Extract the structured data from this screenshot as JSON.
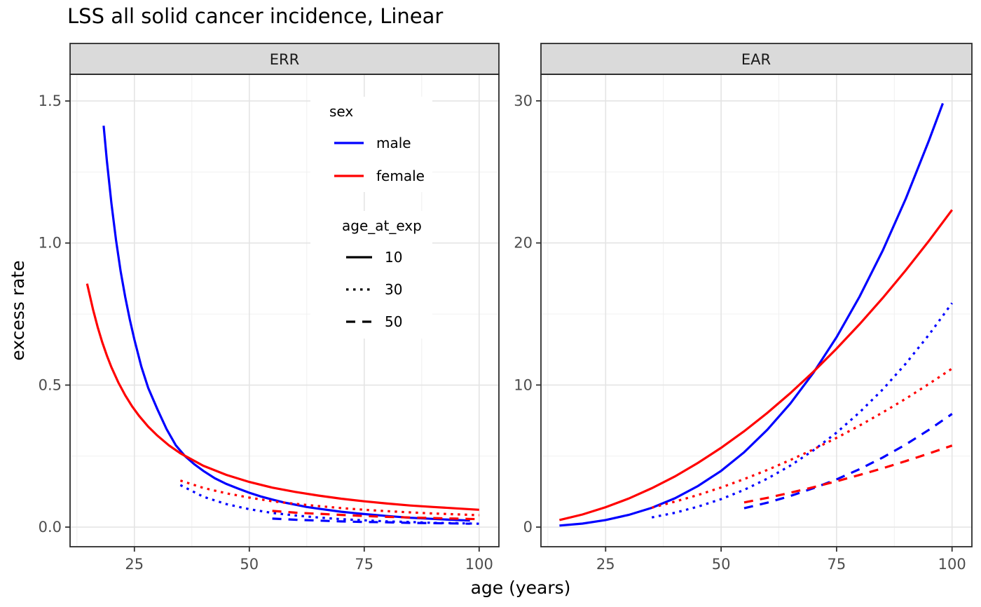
{
  "legend": {
    "sex": {
      "title": "sex",
      "items": [
        {
          "label": "male",
          "color": "#0000FF"
        },
        {
          "label": "female",
          "color": "#FF0000"
        }
      ]
    },
    "age_at_exp": {
      "title": "age_at_exp",
      "items": [
        {
          "label": "10",
          "linetype": "solid",
          "dash": "none"
        },
        {
          "label": "30",
          "linetype": "dotted",
          "dash": "3.5 6.5"
        },
        {
          "label": "50",
          "linetype": "dashed",
          "dash": "13 10"
        }
      ]
    }
  },
  "chart_data": {
    "type": "line",
    "title": "LSS all solid cancer incidence, Linear",
    "xlabel": "age (years)",
    "ylabel": "excess rate",
    "grid": true,
    "legend_position": "inside ERR panel, upper middle",
    "linetypes": {
      "solid": "none",
      "dotted": "3.5 6.5",
      "dashed": "13 10"
    },
    "colors": {
      "male": "#0000FF",
      "female": "#FF0000"
    },
    "facets": [
      {
        "label": "ERR",
        "x_range": [
          11,
          104.3
        ],
        "y_range": [
          -0.069,
          1.594
        ],
        "x_major_ticks": [
          25,
          50,
          75,
          100
        ],
        "x_tick_labels": [
          "25",
          "50",
          "75",
          "100"
        ],
        "x_minor_ticks": [
          12.5,
          37.5,
          62.5,
          87.5
        ],
        "y_major_ticks": [
          0,
          0.5,
          1.0,
          1.5
        ],
        "y_tick_labels": [
          "0.0",
          "0.5",
          "1.0",
          "1.5"
        ],
        "y_minor_ticks": [
          0.25,
          0.75,
          1.25
        ],
        "series": [
          {
            "sex": "male",
            "age_at_exp": 10,
            "color": "#0000FF",
            "linetype": "solid",
            "points": [
              [
                18.3,
                1.413
              ],
              [
                19,
                1.29
              ],
              [
                20,
                1.14
              ],
              [
                21,
                1.01
              ],
              [
                22,
                0.9
              ],
              [
                23,
                0.81
              ],
              [
                24,
                0.73
              ],
              [
                25,
                0.66
              ],
              [
                26.5,
                0.565
              ],
              [
                28,
                0.49
              ],
              [
                30,
                0.415
              ],
              [
                32,
                0.345
              ],
              [
                34,
                0.288
              ],
              [
                36,
                0.25
              ],
              [
                38,
                0.222
              ],
              [
                40,
                0.198
              ],
              [
                42.5,
                0.172
              ],
              [
                45,
                0.152
              ],
              [
                47.5,
                0.136
              ],
              [
                50,
                0.121
              ],
              [
                52.5,
                0.108
              ],
              [
                55,
                0.097
              ],
              [
                57.5,
                0.087
              ],
              [
                60,
                0.079
              ],
              [
                62.5,
                0.071
              ],
              [
                65,
                0.065
              ],
              [
                70,
                0.054
              ],
              [
                75,
                0.046
              ],
              [
                80,
                0.039
              ],
              [
                85,
                0.033
              ],
              [
                90,
                0.029
              ],
              [
                95,
                0.025
              ],
              [
                98,
                0.023
              ]
            ]
          },
          {
            "sex": "female",
            "age_at_exp": 10,
            "color": "#FF0000",
            "linetype": "solid",
            "points": [
              [
                14.7,
                0.857
              ],
              [
                16,
                0.766
              ],
              [
                17,
                0.704
              ],
              [
                18,
                0.651
              ],
              [
                19,
                0.604
              ],
              [
                20,
                0.563
              ],
              [
                21.5,
                0.509
              ],
              [
                23,
                0.464
              ],
              [
                24.5,
                0.425
              ],
              [
                26,
                0.392
              ],
              [
                28,
                0.354
              ],
              [
                30,
                0.322
              ],
              [
                32.5,
                0.288
              ],
              [
                35,
                0.26
              ],
              [
                40,
                0.216
              ],
              [
                45,
                0.184
              ],
              [
                50,
                0.159
              ],
              [
                55,
                0.139
              ],
              [
                60,
                0.124
              ],
              [
                65,
                0.111
              ],
              [
                70,
                0.1
              ],
              [
                75,
                0.091
              ],
              [
                80,
                0.083
              ],
              [
                85,
                0.076
              ],
              [
                90,
                0.071
              ],
              [
                95,
                0.066
              ],
              [
                100,
                0.061
              ]
            ]
          },
          {
            "sex": "male",
            "age_at_exp": 30,
            "color": "#0000FF",
            "linetype": "dotted",
            "points": [
              [
                35,
                0.148
              ],
              [
                40,
                0.107
              ],
              [
                45,
                0.081
              ],
              [
                50,
                0.063
              ],
              [
                55,
                0.05
              ],
              [
                60,
                0.041
              ],
              [
                65,
                0.034
              ],
              [
                70,
                0.028
              ],
              [
                75,
                0.024
              ],
              [
                80,
                0.02
              ],
              [
                85,
                0.018
              ],
              [
                90,
                0.015
              ],
              [
                95,
                0.014
              ],
              [
                100,
                0.012
              ]
            ]
          },
          {
            "sex": "female",
            "age_at_exp": 30,
            "color": "#FF0000",
            "linetype": "dotted",
            "points": [
              [
                35,
                0.164
              ],
              [
                40,
                0.138
              ],
              [
                45,
                0.119
              ],
              [
                50,
                0.104
              ],
              [
                55,
                0.091
              ],
              [
                60,
                0.082
              ],
              [
                65,
                0.074
              ],
              [
                70,
                0.067
              ],
              [
                75,
                0.061
              ],
              [
                80,
                0.056
              ],
              [
                85,
                0.052
              ],
              [
                90,
                0.048
              ],
              [
                95,
                0.045
              ],
              [
                100,
                0.042
              ]
            ]
          },
          {
            "sex": "male",
            "age_at_exp": 50,
            "color": "#0000FF",
            "linetype": "dashed",
            "points": [
              [
                55,
                0.03
              ],
              [
                60,
                0.026
              ],
              [
                65,
                0.023
              ],
              [
                70,
                0.02
              ],
              [
                75,
                0.018
              ],
              [
                80,
                0.017
              ],
              [
                85,
                0.015
              ],
              [
                90,
                0.014
              ],
              [
                95,
                0.013
              ],
              [
                98,
                0.012
              ]
            ]
          },
          {
            "sex": "female",
            "age_at_exp": 50,
            "color": "#FF0000",
            "linetype": "dashed",
            "points": [
              [
                55,
                0.057
              ],
              [
                60,
                0.051
              ],
              [
                65,
                0.047
              ],
              [
                70,
                0.043
              ],
              [
                75,
                0.039
              ],
              [
                80,
                0.036
              ],
              [
                85,
                0.034
              ],
              [
                90,
                0.032
              ],
              [
                95,
                0.03
              ],
              [
                100,
                0.028
              ]
            ]
          }
        ]
      },
      {
        "label": "EAR",
        "x_range": [
          11,
          104.3
        ],
        "y_range": [
          -1.38,
          31.87
        ],
        "x_major_ticks": [
          25,
          50,
          75,
          100
        ],
        "x_tick_labels": [
          "25",
          "50",
          "75",
          "100"
        ],
        "x_minor_ticks": [
          12.5,
          37.5,
          62.5,
          87.5
        ],
        "y_major_ticks": [
          0,
          10,
          20,
          30
        ],
        "y_tick_labels": [
          "0",
          "10",
          "20",
          "30"
        ],
        "y_minor_ticks": [
          5,
          15,
          25
        ],
        "series": [
          {
            "sex": "male",
            "age_at_exp": 10,
            "color": "#0000FF",
            "linetype": "solid",
            "points": [
              [
                15,
                0.11
              ],
              [
                20,
                0.25
              ],
              [
                25,
                0.5
              ],
              [
                30,
                0.86
              ],
              [
                35,
                1.36
              ],
              [
                40,
                2.03
              ],
              [
                45,
                2.89
              ],
              [
                50,
                3.96
              ],
              [
                55,
                5.27
              ],
              [
                60,
                6.85
              ],
              [
                65,
                8.7
              ],
              [
                70,
                10.87
              ],
              [
                75,
                13.37
              ],
              [
                80,
                16.23
              ],
              [
                85,
                19.47
              ],
              [
                90,
                23.12
              ],
              [
                95,
                27.21
              ],
              [
                98,
                29.83
              ]
            ]
          },
          {
            "sex": "female",
            "age_at_exp": 10,
            "color": "#FF0000",
            "linetype": "solid",
            "points": [
              [
                15,
                0.5
              ],
              [
                20,
                0.89
              ],
              [
                25,
                1.4
              ],
              [
                30,
                2.01
              ],
              [
                35,
                2.74
              ],
              [
                40,
                3.57
              ],
              [
                45,
                4.52
              ],
              [
                50,
                5.58
              ],
              [
                55,
                6.75
              ],
              [
                60,
                8.04
              ],
              [
                65,
                9.43
              ],
              [
                70,
                10.94
              ],
              [
                75,
                12.56
              ],
              [
                80,
                14.29
              ],
              [
                85,
                16.13
              ],
              [
                90,
                18.08
              ],
              [
                95,
                20.15
              ],
              [
                100,
                22.33
              ]
            ]
          },
          {
            "sex": "male",
            "age_at_exp": 30,
            "color": "#0000FF",
            "linetype": "dotted",
            "points": [
              [
                35,
                0.68
              ],
              [
                40,
                1.01
              ],
              [
                45,
                1.44
              ],
              [
                50,
                1.97
              ],
              [
                55,
                2.62
              ],
              [
                60,
                3.41
              ],
              [
                65,
                4.33
              ],
              [
                70,
                5.41
              ],
              [
                75,
                6.65
              ],
              [
                80,
                8.08
              ],
              [
                85,
                9.69
              ],
              [
                90,
                11.51
              ],
              [
                95,
                13.54
              ],
              [
                100,
                15.77
              ]
            ]
          },
          {
            "sex": "female",
            "age_at_exp": 30,
            "color": "#FF0000",
            "linetype": "dotted",
            "points": [
              [
                35,
                1.37
              ],
              [
                40,
                1.79
              ],
              [
                45,
                2.26
              ],
              [
                50,
                2.79
              ],
              [
                55,
                3.38
              ],
              [
                60,
                4.02
              ],
              [
                65,
                4.72
              ],
              [
                70,
                5.47
              ],
              [
                75,
                6.28
              ],
              [
                80,
                7.15
              ],
              [
                85,
                8.07
              ],
              [
                90,
                9.04
              ],
              [
                95,
                10.08
              ],
              [
                100,
                11.16
              ]
            ]
          },
          {
            "sex": "male",
            "age_at_exp": 50,
            "color": "#0000FF",
            "linetype": "dashed",
            "points": [
              [
                55,
                1.33
              ],
              [
                60,
                1.72
              ],
              [
                65,
                2.19
              ],
              [
                70,
                2.74
              ],
              [
                75,
                3.36
              ],
              [
                80,
                4.08
              ],
              [
                85,
                4.9
              ],
              [
                90,
                5.82
              ],
              [
                95,
                6.85
              ],
              [
                100,
                7.97
              ]
            ]
          },
          {
            "sex": "female",
            "age_at_exp": 50,
            "color": "#FF0000",
            "linetype": "dashed",
            "points": [
              [
                55,
                1.74
              ],
              [
                60,
                2.06
              ],
              [
                65,
                2.42
              ],
              [
                70,
                2.81
              ],
              [
                75,
                3.23
              ],
              [
                80,
                3.67
              ],
              [
                85,
                4.14
              ],
              [
                90,
                4.65
              ],
              [
                95,
                5.18
              ],
              [
                100,
                5.74
              ]
            ]
          }
        ]
      }
    ]
  }
}
